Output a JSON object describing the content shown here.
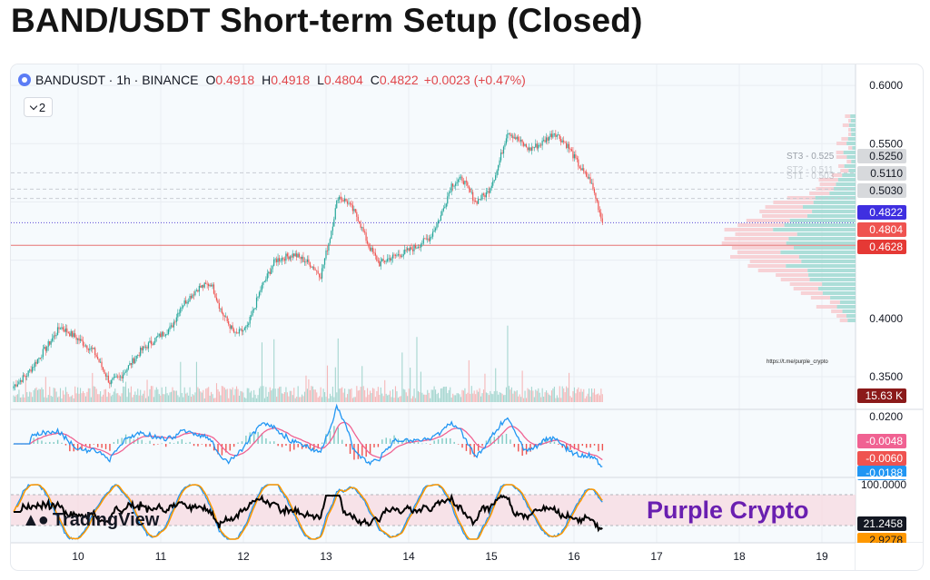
{
  "page": {
    "title": "BAND/USDT Short-term Setup (Closed)"
  },
  "header": {
    "symbol": "BANDUSDT · 1h · BINANCE",
    "o_label": "O",
    "o_value": "0.4918",
    "h_label": "H",
    "h_value": "0.4918",
    "l_label": "L",
    "l_value": "0.4804",
    "c_label": "C",
    "c_value": "0.4822",
    "change": "+0.0023 (+0.47%)",
    "indicator_count": "2"
  },
  "brand": {
    "logo_text": "TradingView",
    "watermark": "Purple Crypto",
    "link": "https://t.me/purple_crypto"
  },
  "colors": {
    "up": "#26a69a",
    "down": "#ef5350",
    "macd": "#2196f3",
    "signal": "#f06292",
    "stoch_k": "#2196f3",
    "stoch_d": "#ff9800",
    "rsi": "#000000",
    "accent": "#6a1fb0"
  },
  "chart_data": {
    "type": "candlestick",
    "x_axis": {
      "ticks": [
        "10",
        "11",
        "12",
        "13",
        "14",
        "15",
        "16",
        "17",
        "18",
        "19"
      ]
    },
    "price_axis": {
      "ticks": [
        "0.6000",
        "0.5500",
        "0.4000",
        "0.3500"
      ],
      "range": [
        0.322,
        0.618
      ],
      "markers": [
        {
          "label": "0.5250",
          "value": 0.525,
          "style": "level"
        },
        {
          "label": "0.5110",
          "value": 0.511,
          "style": "level"
        },
        {
          "label": "0.5030",
          "value": 0.503,
          "style": "level"
        },
        {
          "label": "0.4822",
          "value": 0.4822,
          "style": "current"
        },
        {
          "label": "0.4804",
          "value": 0.4804,
          "style": "low"
        },
        {
          "label": "0.4628",
          "value": 0.4628,
          "style": "stop"
        }
      ],
      "level_labels": [
        "ST3 - 0.525",
        "ST2 - 0.511",
        "ST1 - 0.503"
      ]
    },
    "price_anchors": [
      [
        0,
        0.342
      ],
      [
        10,
        0.352
      ],
      [
        25,
        0.376
      ],
      [
        35,
        0.393
      ],
      [
        45,
        0.385
      ],
      [
        60,
        0.372
      ],
      [
        72,
        0.345
      ],
      [
        80,
        0.35
      ],
      [
        95,
        0.372
      ],
      [
        108,
        0.384
      ],
      [
        118,
        0.392
      ],
      [
        125,
        0.41
      ],
      [
        138,
        0.426
      ],
      [
        148,
        0.43
      ],
      [
        156,
        0.405
      ],
      [
        166,
        0.386
      ],
      [
        175,
        0.392
      ],
      [
        185,
        0.425
      ],
      [
        196,
        0.45
      ],
      [
        210,
        0.455
      ],
      [
        222,
        0.447
      ],
      [
        230,
        0.437
      ],
      [
        237,
        0.47
      ],
      [
        243,
        0.505
      ],
      [
        250,
        0.5
      ],
      [
        258,
        0.486
      ],
      [
        266,
        0.462
      ],
      [
        274,
        0.447
      ],
      [
        282,
        0.452
      ],
      [
        292,
        0.456
      ],
      [
        302,
        0.462
      ],
      [
        312,
        0.47
      ],
      [
        320,
        0.488
      ],
      [
        328,
        0.515
      ],
      [
        336,
        0.52
      ],
      [
        346,
        0.5
      ],
      [
        355,
        0.508
      ],
      [
        362,
        0.527
      ],
      [
        370,
        0.561
      ],
      [
        378,
        0.553
      ],
      [
        386,
        0.545
      ],
      [
        395,
        0.55
      ],
      [
        405,
        0.56
      ],
      [
        415,
        0.548
      ],
      [
        425,
        0.528
      ],
      [
        432,
        0.518
      ],
      [
        437,
        0.5
      ],
      [
        441,
        0.4822
      ]
    ],
    "volume_label": "15.63 K",
    "macd": {
      "ticks": [
        "0.0200"
      ],
      "markers": [
        {
          "label": "-0.0048",
          "style": "signal"
        },
        {
          "label": "-0.0060",
          "style": "macd"
        },
        {
          "label": "-0.0188",
          "style": "hist"
        }
      ]
    },
    "stoch": {
      "ticks": [
        "100.0000"
      ],
      "markers": [
        {
          "label": "21.2458",
          "style": "rsi"
        },
        {
          "label": "2.9278",
          "style": "k"
        }
      ]
    }
  }
}
